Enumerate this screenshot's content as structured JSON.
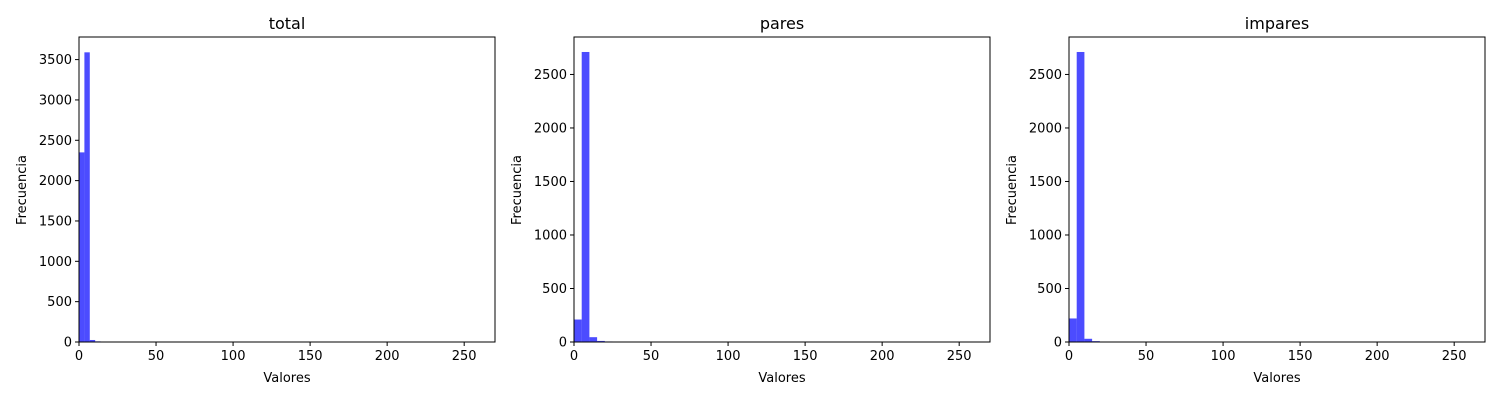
{
  "chart_data": [
    {
      "type": "bar",
      "title": "total",
      "xlabel": "Valores",
      "ylabel": "Frecuencia",
      "xlim": [
        0,
        270
      ],
      "ylim": [
        0,
        3780
      ],
      "xticks": [
        0,
        50,
        100,
        150,
        200,
        250
      ],
      "yticks": [
        0,
        500,
        1000,
        1500,
        2000,
        2500,
        3000,
        3500
      ],
      "grid": false,
      "bar_color": "#0000ff",
      "bar_opacity": 0.7,
      "bins": [
        {
          "x0": 0,
          "x1": 3.5,
          "count": 2350
        },
        {
          "x0": 3.5,
          "x1": 7,
          "count": 3590
        },
        {
          "x0": 7,
          "x1": 10.5,
          "count": 25
        },
        {
          "x0": 10.5,
          "x1": 14,
          "count": 8
        }
      ]
    },
    {
      "type": "bar",
      "title": "pares",
      "xlabel": "Valores",
      "ylabel": "Frecuencia",
      "xlim": [
        0,
        270
      ],
      "ylim": [
        0,
        2850
      ],
      "xticks": [
        0,
        50,
        100,
        150,
        200,
        250
      ],
      "yticks": [
        0,
        500,
        1000,
        1500,
        2000,
        2500
      ],
      "grid": false,
      "bar_color": "#0000ff",
      "bar_opacity": 0.7,
      "bins": [
        {
          "x0": 0,
          "x1": 5,
          "count": 210
        },
        {
          "x0": 5,
          "x1": 10,
          "count": 2710
        },
        {
          "x0": 10,
          "x1": 15,
          "count": 45
        },
        {
          "x0": 15,
          "x1": 20,
          "count": 10
        },
        {
          "x0": 20,
          "x1": 25,
          "count": 5
        }
      ]
    },
    {
      "type": "bar",
      "title": "impares",
      "xlabel": "Valores",
      "ylabel": "Frecuencia",
      "xlim": [
        0,
        270
      ],
      "ylim": [
        0,
        2850
      ],
      "xticks": [
        0,
        50,
        100,
        150,
        200,
        250
      ],
      "yticks": [
        0,
        500,
        1000,
        1500,
        2000,
        2500
      ],
      "grid": false,
      "bar_color": "#0000ff",
      "bar_opacity": 0.7,
      "bins": [
        {
          "x0": 0,
          "x1": 5,
          "count": 220
        },
        {
          "x0": 5,
          "x1": 10,
          "count": 2710
        },
        {
          "x0": 10,
          "x1": 15,
          "count": 30
        },
        {
          "x0": 15,
          "x1": 20,
          "count": 8
        }
      ]
    }
  ]
}
